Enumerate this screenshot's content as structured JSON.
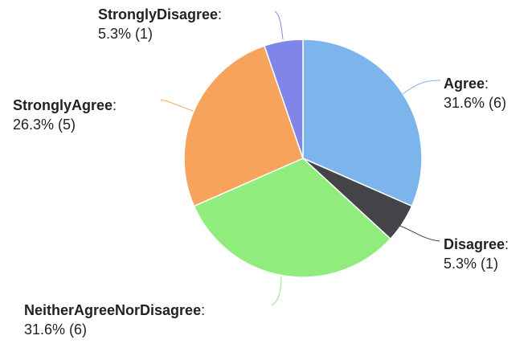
{
  "chart_data": {
    "type": "pie",
    "title": "",
    "slices": [
      {
        "name": "Agree",
        "value": 6,
        "pct_label": "31.6% (6)",
        "color": "#7cb5ec"
      },
      {
        "name": "Disagree",
        "value": 1,
        "pct_label": "5.3% (1)",
        "color": "#434348"
      },
      {
        "name": "NeitherAgreeNorDisagree",
        "value": 6,
        "pct_label": "31.6% (6)",
        "color": "#90ed7d"
      },
      {
        "name": "StronglyAgree",
        "value": 5,
        "pct_label": "26.3% (5)",
        "color": "#f7a35c"
      },
      {
        "name": "StronglyDisagree",
        "value": 1,
        "pct_label": "5.3% (1)",
        "color": "#8085e9"
      }
    ],
    "start_angle_deg": 0,
    "direction": "clockwise",
    "legend": "none",
    "data_labels": "outside-with-connectors"
  }
}
